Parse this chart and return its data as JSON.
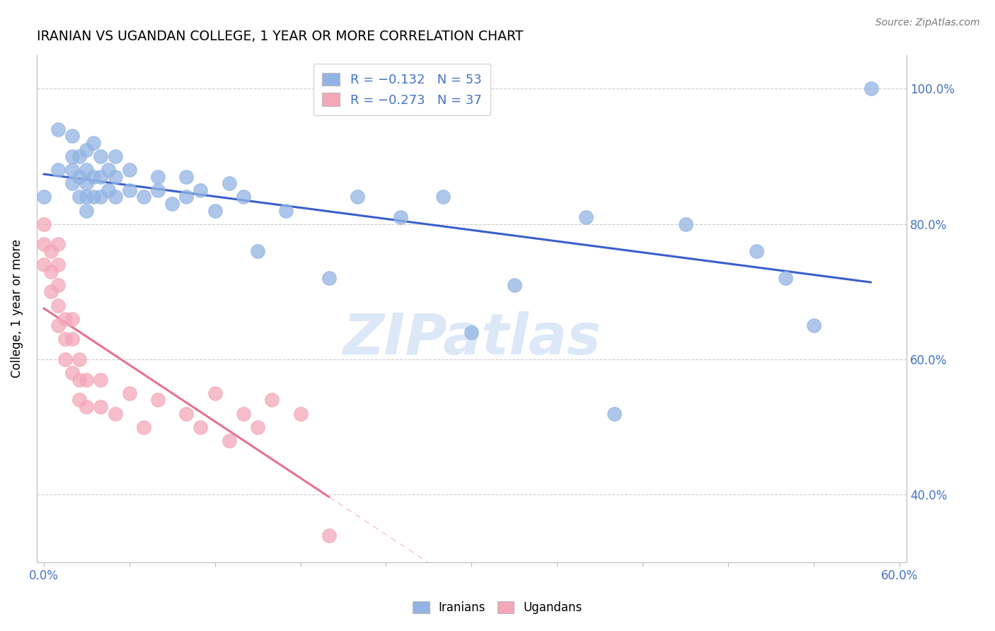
{
  "title": "IRANIAN VS UGANDAN COLLEGE, 1 YEAR OR MORE CORRELATION CHART",
  "source_text": "Source: ZipAtlas.com",
  "ylabel": "College, 1 year or more",
  "xlim": [
    -0.005,
    0.605
  ],
  "ylim": [
    0.3,
    1.05
  ],
  "legend_r1": "R = −0.132",
  "legend_n1": "N = 53",
  "legend_r2": "R = −0.273",
  "legend_n2": "N = 37",
  "color_iranian": "#92b4e3",
  "color_ugandan": "#f4a7b9",
  "line_color_iranian": "#3a5fcd",
  "line_color_ugandan": "#e87090",
  "watermark": "ZIPatlas",
  "watermark_color": "#dce8f7",
  "background_color": "#ffffff",
  "grid_color": "#c8c8c8",
  "axis_color": "#bbbbbb",
  "tick_label_color": "#4472c4",
  "iranians_x": [
    0.0,
    0.01,
    0.01,
    0.02,
    0.02,
    0.02,
    0.02,
    0.025,
    0.025,
    0.025,
    0.03,
    0.03,
    0.03,
    0.03,
    0.03,
    0.035,
    0.035,
    0.035,
    0.04,
    0.04,
    0.04,
    0.045,
    0.045,
    0.05,
    0.05,
    0.05,
    0.06,
    0.06,
    0.07,
    0.08,
    0.08,
    0.09,
    0.1,
    0.1,
    0.11,
    0.12,
    0.13,
    0.14,
    0.15,
    0.17,
    0.2,
    0.22,
    0.25,
    0.28,
    0.3,
    0.33,
    0.38,
    0.4,
    0.45,
    0.5,
    0.52,
    0.54,
    0.58
  ],
  "iranians_y": [
    0.84,
    0.88,
    0.94,
    0.86,
    0.88,
    0.9,
    0.93,
    0.84,
    0.87,
    0.9,
    0.82,
    0.84,
    0.86,
    0.88,
    0.91,
    0.84,
    0.87,
    0.92,
    0.84,
    0.87,
    0.9,
    0.85,
    0.88,
    0.84,
    0.87,
    0.9,
    0.85,
    0.88,
    0.84,
    0.85,
    0.87,
    0.83,
    0.84,
    0.87,
    0.85,
    0.82,
    0.86,
    0.84,
    0.76,
    0.82,
    0.72,
    0.84,
    0.81,
    0.84,
    0.64,
    0.71,
    0.81,
    0.52,
    0.8,
    0.76,
    0.72,
    0.65,
    1.0
  ],
  "ugandans_x": [
    0.0,
    0.0,
    0.0,
    0.005,
    0.005,
    0.005,
    0.01,
    0.01,
    0.01,
    0.01,
    0.01,
    0.015,
    0.015,
    0.015,
    0.02,
    0.02,
    0.02,
    0.025,
    0.025,
    0.025,
    0.03,
    0.03,
    0.04,
    0.04,
    0.05,
    0.06,
    0.07,
    0.08,
    0.1,
    0.11,
    0.12,
    0.13,
    0.14,
    0.15,
    0.16,
    0.18,
    0.2
  ],
  "ugandans_y": [
    0.8,
    0.77,
    0.74,
    0.76,
    0.73,
    0.7,
    0.77,
    0.74,
    0.71,
    0.68,
    0.65,
    0.66,
    0.63,
    0.6,
    0.66,
    0.63,
    0.58,
    0.6,
    0.57,
    0.54,
    0.57,
    0.53,
    0.57,
    0.53,
    0.52,
    0.55,
    0.5,
    0.54,
    0.52,
    0.5,
    0.55,
    0.48,
    0.52,
    0.5,
    0.54,
    0.52,
    0.34
  ]
}
